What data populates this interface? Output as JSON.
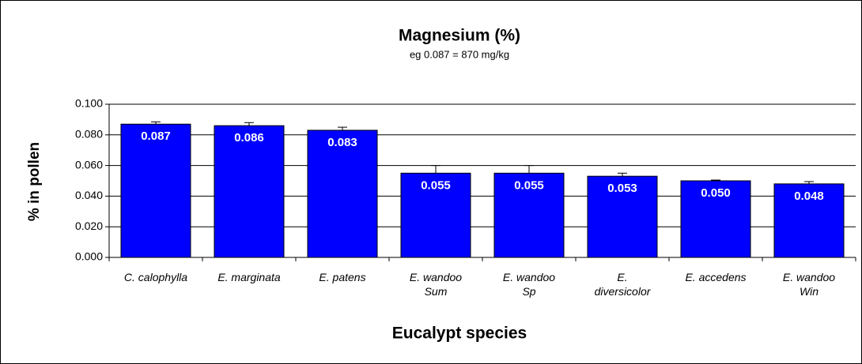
{
  "chart_data": {
    "type": "bar",
    "title": "Magnesium (%)",
    "subtitle": "eg 0.087 = 870 mg/kg",
    "x_label": "Eucalypt species",
    "y_label": "% in pollen",
    "categories": [
      "C. calophylla",
      "E. marginata",
      "E. patens",
      "E. wandoo\nSum",
      "E. wandoo\nSp",
      "E.\ndiversicolor",
      "E. accedens",
      "E. wandoo\nWin"
    ],
    "values": [
      0.087,
      0.086,
      0.083,
      0.055,
      0.055,
      0.053,
      0.05,
      0.048
    ],
    "value_labels": [
      "0.087",
      "0.086",
      "0.083",
      "0.055",
      "0.055",
      "0.053",
      "0.050",
      "0.048"
    ],
    "errors": [
      0.0015,
      0.002,
      0.002,
      0.005,
      0.005,
      0.002,
      0.0005,
      0.0015
    ],
    "color": "#0000ff",
    "ylim": [
      0,
      0.1
    ],
    "yticks": [
      {
        "value": 0,
        "label": "0.000"
      },
      {
        "value": 0.02,
        "label": "0.020"
      },
      {
        "value": 0.04,
        "label": "0.040"
      },
      {
        "value": 0.06,
        "label": "0.060"
      },
      {
        "value": 0.08,
        "label": "0.080"
      },
      {
        "value": 0.1,
        "label": "0.100"
      }
    ],
    "grid": true
  }
}
